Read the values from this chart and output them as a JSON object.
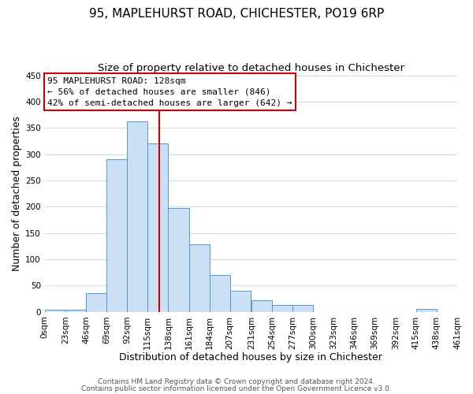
{
  "title": "95, MAPLEHURST ROAD, CHICHESTER, PO19 6RP",
  "subtitle": "Size of property relative to detached houses in Chichester",
  "xlabel": "Distribution of detached houses by size in Chichester",
  "ylabel": "Number of detached properties",
  "bar_left_edges": [
    0,
    23,
    46,
    69,
    92,
    115,
    138,
    161,
    184,
    207,
    231,
    254,
    277,
    300,
    323,
    346,
    369,
    392,
    415,
    438
  ],
  "bar_heights": [
    5,
    5,
    35,
    290,
    363,
    320,
    197,
    128,
    70,
    40,
    22,
    13,
    13,
    0,
    0,
    0,
    0,
    0,
    6,
    0
  ],
  "bin_width": 23,
  "bar_color": "#cce0f5",
  "bar_edge_color": "#5599cc",
  "property_value": 128,
  "vline_color": "#cc0000",
  "annotation_text": "95 MAPLEHURST ROAD: 128sqm\n← 56% of detached houses are smaller (846)\n42% of semi-detached houses are larger (642) →",
  "annotation_box_facecolor": "white",
  "annotation_box_edgecolor": "#cc0000",
  "xlim_left": 0,
  "xlim_right": 461,
  "ylim_bottom": 0,
  "ylim_top": 450,
  "yticks": [
    0,
    50,
    100,
    150,
    200,
    250,
    300,
    350,
    400,
    450
  ],
  "xtick_labels": [
    "0sqm",
    "23sqm",
    "46sqm",
    "69sqm",
    "92sqm",
    "115sqm",
    "138sqm",
    "161sqm",
    "184sqm",
    "207sqm",
    "231sqm",
    "254sqm",
    "277sqm",
    "300sqm",
    "323sqm",
    "346sqm",
    "369sqm",
    "392sqm",
    "415sqm",
    "438sqm",
    "461sqm"
  ],
  "xtick_positions": [
    0,
    23,
    46,
    69,
    92,
    115,
    138,
    161,
    184,
    207,
    231,
    254,
    277,
    300,
    323,
    346,
    369,
    392,
    415,
    438,
    461
  ],
  "footer_line1": "Contains HM Land Registry data © Crown copyright and database right 2024.",
  "footer_line2": "Contains public sector information licensed under the Open Government Licence v3.0.",
  "background_color": "#ffffff",
  "grid_color": "#ccddee",
  "title_fontsize": 11,
  "subtitle_fontsize": 9.5,
  "axis_label_fontsize": 9,
  "tick_fontsize": 7.5,
  "annotation_fontsize": 8,
  "footer_fontsize": 6.5
}
